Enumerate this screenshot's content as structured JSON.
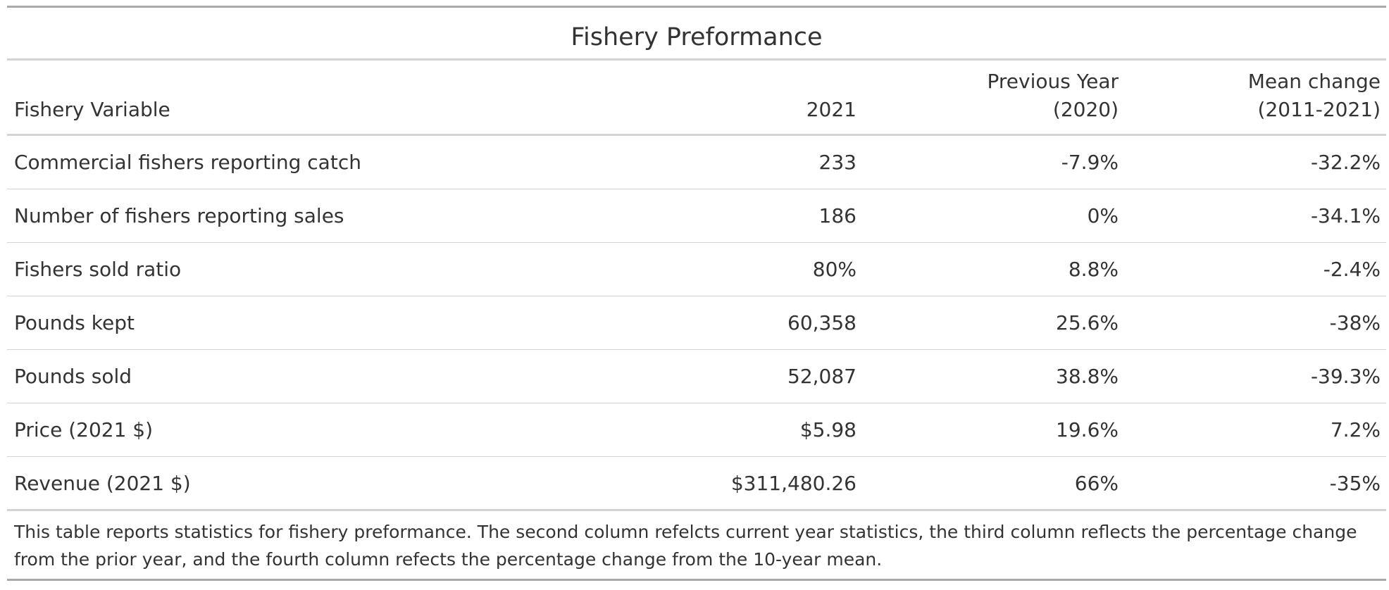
{
  "table": {
    "title": "Fishery Preformance",
    "headers": {
      "variable": "Fishery Variable",
      "current": "2021",
      "prev_line1": "Previous Year",
      "prev_line2": "(2020)",
      "mean_line1": "Mean change",
      "mean_line2": "(2011-2021)"
    },
    "rows": [
      {
        "variable": "Commercial fishers reporting catch",
        "current": "233",
        "prev": "-7.9%",
        "mean": "-32.2%"
      },
      {
        "variable": "Number of fishers reporting sales",
        "current": "186",
        "prev": "0%",
        "mean": "-34.1%"
      },
      {
        "variable": "Fishers sold ratio",
        "current": "80%",
        "prev": "8.8%",
        "mean": "-2.4%"
      },
      {
        "variable": "Pounds kept",
        "current": "60,358",
        "prev": "25.6%",
        "mean": "-38%"
      },
      {
        "variable": "Pounds sold",
        "current": "52,087",
        "prev": "38.8%",
        "mean": "-39.3%"
      },
      {
        "variable": "Price (2021 $)",
        "current": "$5.98",
        "prev": "19.6%",
        "mean": "7.2%"
      },
      {
        "variable": "Revenue (2021 $)",
        "current": "$311,480.26",
        "prev": "66%",
        "mean": "-35%"
      }
    ],
    "footnote": "This table reports statistics for fishery preformance. The second column refelcts current year statistics, the third column reflects the percentage change from the prior year, and the fourth column refects the percentage change from the 10-year mean."
  }
}
